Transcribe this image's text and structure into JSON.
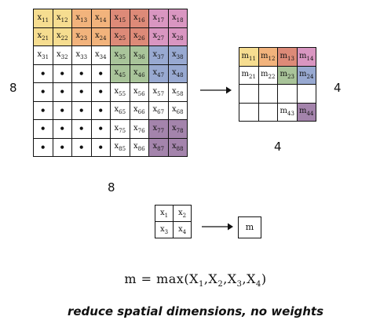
{
  "big_grid": {
    "rows": [
      [
        {
          "b": "x",
          "s": "11",
          "c": "#f6dd90"
        },
        {
          "b": "x",
          "s": "12",
          "c": "#f6dd90"
        },
        {
          "b": "x",
          "s": "13",
          "c": "#f2b37c"
        },
        {
          "b": "x",
          "s": "14",
          "c": "#f2b37c"
        },
        {
          "b": "x",
          "s": "15",
          "c": "#dd8a78"
        },
        {
          "b": "x",
          "s": "16",
          "c": "#dd8a78"
        },
        {
          "b": "x",
          "s": "17",
          "c": "#d996c1"
        },
        {
          "b": "x",
          "s": "18",
          "c": "#d996c1"
        }
      ],
      [
        {
          "b": "x",
          "s": "21",
          "c": "#f6dd90"
        },
        {
          "b": "x",
          "s": "22",
          "c": "#f6dd90"
        },
        {
          "b": "x",
          "s": "23",
          "c": "#f2b37c"
        },
        {
          "b": "x",
          "s": "24",
          "c": "#f2b37c"
        },
        {
          "b": "x",
          "s": "25",
          "c": "#dd8a78"
        },
        {
          "b": "x",
          "s": "26",
          "c": "#dd8a78"
        },
        {
          "b": "x",
          "s": "27",
          "c": "#d996c1"
        },
        {
          "b": "x",
          "s": "28",
          "c": "#d996c1"
        }
      ],
      [
        {
          "b": "x",
          "s": "31",
          "c": "#ffffff"
        },
        {
          "b": "x",
          "s": "32",
          "c": "#ffffff"
        },
        {
          "b": "x",
          "s": "33",
          "c": "#ffffff"
        },
        {
          "b": "x",
          "s": "34",
          "c": "#ffffff"
        },
        {
          "b": "x",
          "s": "35",
          "c": "#a9c49a"
        },
        {
          "b": "x",
          "s": "36",
          "c": "#a9c49a"
        },
        {
          "b": "x",
          "s": "37",
          "c": "#98a9d1"
        },
        {
          "b": "x",
          "s": "38",
          "c": "#98a9d1"
        }
      ],
      [
        {
          "b": "•",
          "s": "",
          "c": "#ffffff"
        },
        {
          "b": "•",
          "s": "",
          "c": "#ffffff"
        },
        {
          "b": "•",
          "s": "",
          "c": "#ffffff"
        },
        {
          "b": "•",
          "s": "",
          "c": "#ffffff"
        },
        {
          "b": "x",
          "s": "45",
          "c": "#a9c49a"
        },
        {
          "b": "x",
          "s": "46",
          "c": "#a9c49a"
        },
        {
          "b": "x",
          "s": "47",
          "c": "#98a9d1"
        },
        {
          "b": "x",
          "s": "48",
          "c": "#98a9d1"
        }
      ],
      [
        {
          "b": "•",
          "s": "",
          "c": "#ffffff"
        },
        {
          "b": "•",
          "s": "",
          "c": "#ffffff"
        },
        {
          "b": "•",
          "s": "",
          "c": "#ffffff"
        },
        {
          "b": "•",
          "s": "",
          "c": "#ffffff"
        },
        {
          "b": "x",
          "s": "55",
          "c": "#ffffff"
        },
        {
          "b": "x",
          "s": "56",
          "c": "#ffffff"
        },
        {
          "b": "x",
          "s": "57",
          "c": "#ffffff"
        },
        {
          "b": "x",
          "s": "58",
          "c": "#ffffff"
        }
      ],
      [
        {
          "b": "•",
          "s": "",
          "c": "#ffffff"
        },
        {
          "b": "•",
          "s": "",
          "c": "#ffffff"
        },
        {
          "b": "•",
          "s": "",
          "c": "#ffffff"
        },
        {
          "b": "•",
          "s": "",
          "c": "#ffffff"
        },
        {
          "b": "x",
          "s": "65",
          "c": "#ffffff"
        },
        {
          "b": "x",
          "s": "66",
          "c": "#ffffff"
        },
        {
          "b": "x",
          "s": "67",
          "c": "#ffffff"
        },
        {
          "b": "x",
          "s": "68",
          "c": "#ffffff"
        }
      ],
      [
        {
          "b": "•",
          "s": "",
          "c": "#ffffff"
        },
        {
          "b": "•",
          "s": "",
          "c": "#ffffff"
        },
        {
          "b": "•",
          "s": "",
          "c": "#ffffff"
        },
        {
          "b": "•",
          "s": "",
          "c": "#ffffff"
        },
        {
          "b": "x",
          "s": "75",
          "c": "#ffffff"
        },
        {
          "b": "x",
          "s": "76",
          "c": "#ffffff"
        },
        {
          "b": "x",
          "s": "77",
          "c": "#a484ac"
        },
        {
          "b": "x",
          "s": "78",
          "c": "#a484ac"
        }
      ],
      [
        {
          "b": "•",
          "s": "",
          "c": "#ffffff"
        },
        {
          "b": "•",
          "s": "",
          "c": "#ffffff"
        },
        {
          "b": "•",
          "s": "",
          "c": "#ffffff"
        },
        {
          "b": "•",
          "s": "",
          "c": "#ffffff"
        },
        {
          "b": "x",
          "s": "85",
          "c": "#ffffff"
        },
        {
          "b": "x",
          "s": "86",
          "c": "#ffffff"
        },
        {
          "b": "x",
          "s": "87",
          "c": "#a484ac"
        },
        {
          "b": "x",
          "s": "88",
          "c": "#a484ac"
        }
      ]
    ],
    "left_label": "8",
    "bottom_label": "8"
  },
  "out_grid": {
    "rows": [
      [
        {
          "b": "m",
          "s": "11",
          "c": "#f6dd90"
        },
        {
          "b": "m",
          "s": "12",
          "c": "#f2b37c"
        },
        {
          "b": "m",
          "s": "13",
          "c": "#dd8a78"
        },
        {
          "b": "m",
          "s": "14",
          "c": "#d996c1"
        }
      ],
      [
        {
          "b": "m",
          "s": "21",
          "c": "#ffffff"
        },
        {
          "b": "m",
          "s": "22",
          "c": "#ffffff"
        },
        {
          "b": "m",
          "s": "23",
          "c": "#a9c49a"
        },
        {
          "b": "m",
          "s": "24",
          "c": "#98a9d1"
        }
      ],
      [
        {
          "b": "",
          "s": "",
          "c": "#ffffff"
        },
        {
          "b": "",
          "s": "",
          "c": "#ffffff"
        },
        {
          "b": "",
          "s": "",
          "c": "#ffffff"
        },
        {
          "b": "",
          "s": "",
          "c": "#ffffff"
        }
      ],
      [
        {
          "b": "",
          "s": "",
          "c": "#ffffff"
        },
        {
          "b": "",
          "s": "",
          "c": "#ffffff"
        },
        {
          "b": "m",
          "s": "43",
          "c": "#ffffff"
        },
        {
          "b": "m",
          "s": "44",
          "c": "#a484ac"
        }
      ]
    ],
    "right_label": "4",
    "bottom_label": "4"
  },
  "small_grid": {
    "rows": [
      [
        {
          "b": "x",
          "s": "1",
          "c": "#ffffff"
        },
        {
          "b": "x",
          "s": "2",
          "c": "#ffffff"
        }
      ],
      [
        {
          "b": "x",
          "s": "3",
          "c": "#ffffff"
        },
        {
          "b": "x",
          "s": "4",
          "c": "#ffffff"
        }
      ]
    ],
    "result": "m"
  },
  "formula": {
    "lhs": "m = max",
    "args": [
      {
        "b": "X",
        "s": "1"
      },
      {
        "b": "X",
        "s": "2"
      },
      {
        "b": "X",
        "s": "3"
      },
      {
        "b": "X",
        "s": "4"
      }
    ]
  },
  "tagline": "reduce spatial dimensions, no weights"
}
